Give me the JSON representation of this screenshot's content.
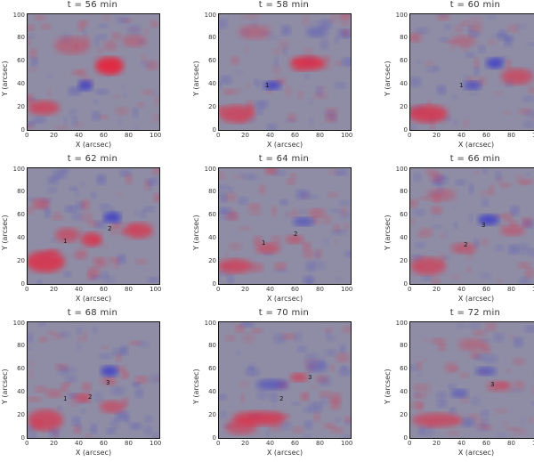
{
  "panels": [
    {
      "title": "t = 56 min",
      "labels": []
    },
    {
      "title": "t = 58 min",
      "labels": [
        "1"
      ]
    },
    {
      "title": "t = 60 min",
      "labels": [
        "1"
      ]
    },
    {
      "title": "t = 62 min",
      "labels": [
        "1",
        "2"
      ]
    },
    {
      "title": "t = 64 min",
      "labels": [
        "1",
        "2"
      ]
    },
    {
      "title": "t = 66 min",
      "labels": [
        "3",
        "2"
      ]
    },
    {
      "title": "t = 68 min",
      "labels": [
        "1",
        "2",
        "3"
      ]
    },
    {
      "title": "t = 70 min",
      "labels": [
        "2",
        "3"
      ]
    },
    {
      "title": "t = 72 min",
      "labels": [
        "3"
      ]
    }
  ],
  "axes": {
    "xlabel": "X (arcsec)",
    "ylabel": "Y (arcsec)",
    "xticks": [
      "0",
      "20",
      "40",
      "60",
      "80",
      "100"
    ],
    "yticks": [
      "0",
      "20",
      "40",
      "60",
      "80",
      "100"
    ]
  },
  "colors": {
    "positive": "#e8223a",
    "negative": "#3a3ac8",
    "background": "#8f8da5"
  }
}
